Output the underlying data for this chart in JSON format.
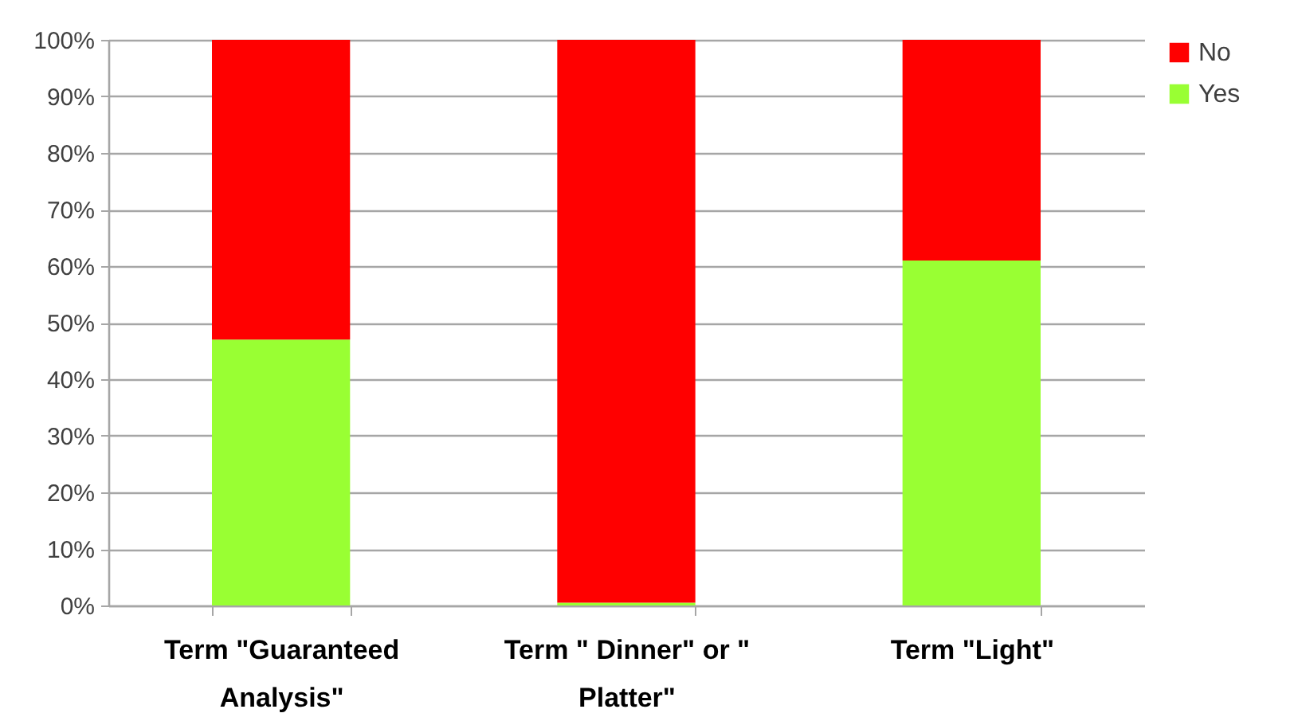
{
  "chart_data": {
    "type": "bar",
    "stacked": true,
    "categories": [
      "Term \"Guaranteed Analysis\"",
      "Term \" Dinner\" or \" Platter\"",
      "Term \"Light\""
    ],
    "series": [
      {
        "name": "Yes",
        "color": "#99ff33",
        "values": [
          47,
          0.5,
          61
        ]
      },
      {
        "name": "No",
        "color": "#ff0000",
        "values": [
          53,
          99.5,
          39
        ]
      }
    ],
    "ylim": [
      0,
      100
    ],
    "yticks": [
      {
        "value": 0,
        "label": "0%"
      },
      {
        "value": 10,
        "label": "10%"
      },
      {
        "value": 20,
        "label": "20%"
      },
      {
        "value": 30,
        "label": "30%"
      },
      {
        "value": 40,
        "label": "40%"
      },
      {
        "value": 50,
        "label": "50%"
      },
      {
        "value": 60,
        "label": "60%"
      },
      {
        "value": 70,
        "label": "70%"
      },
      {
        "value": 80,
        "label": "80%"
      },
      {
        "value": 90,
        "label": "90%"
      },
      {
        "value": 100,
        "label": "100%"
      }
    ],
    "grid": "y",
    "legend": "right"
  }
}
